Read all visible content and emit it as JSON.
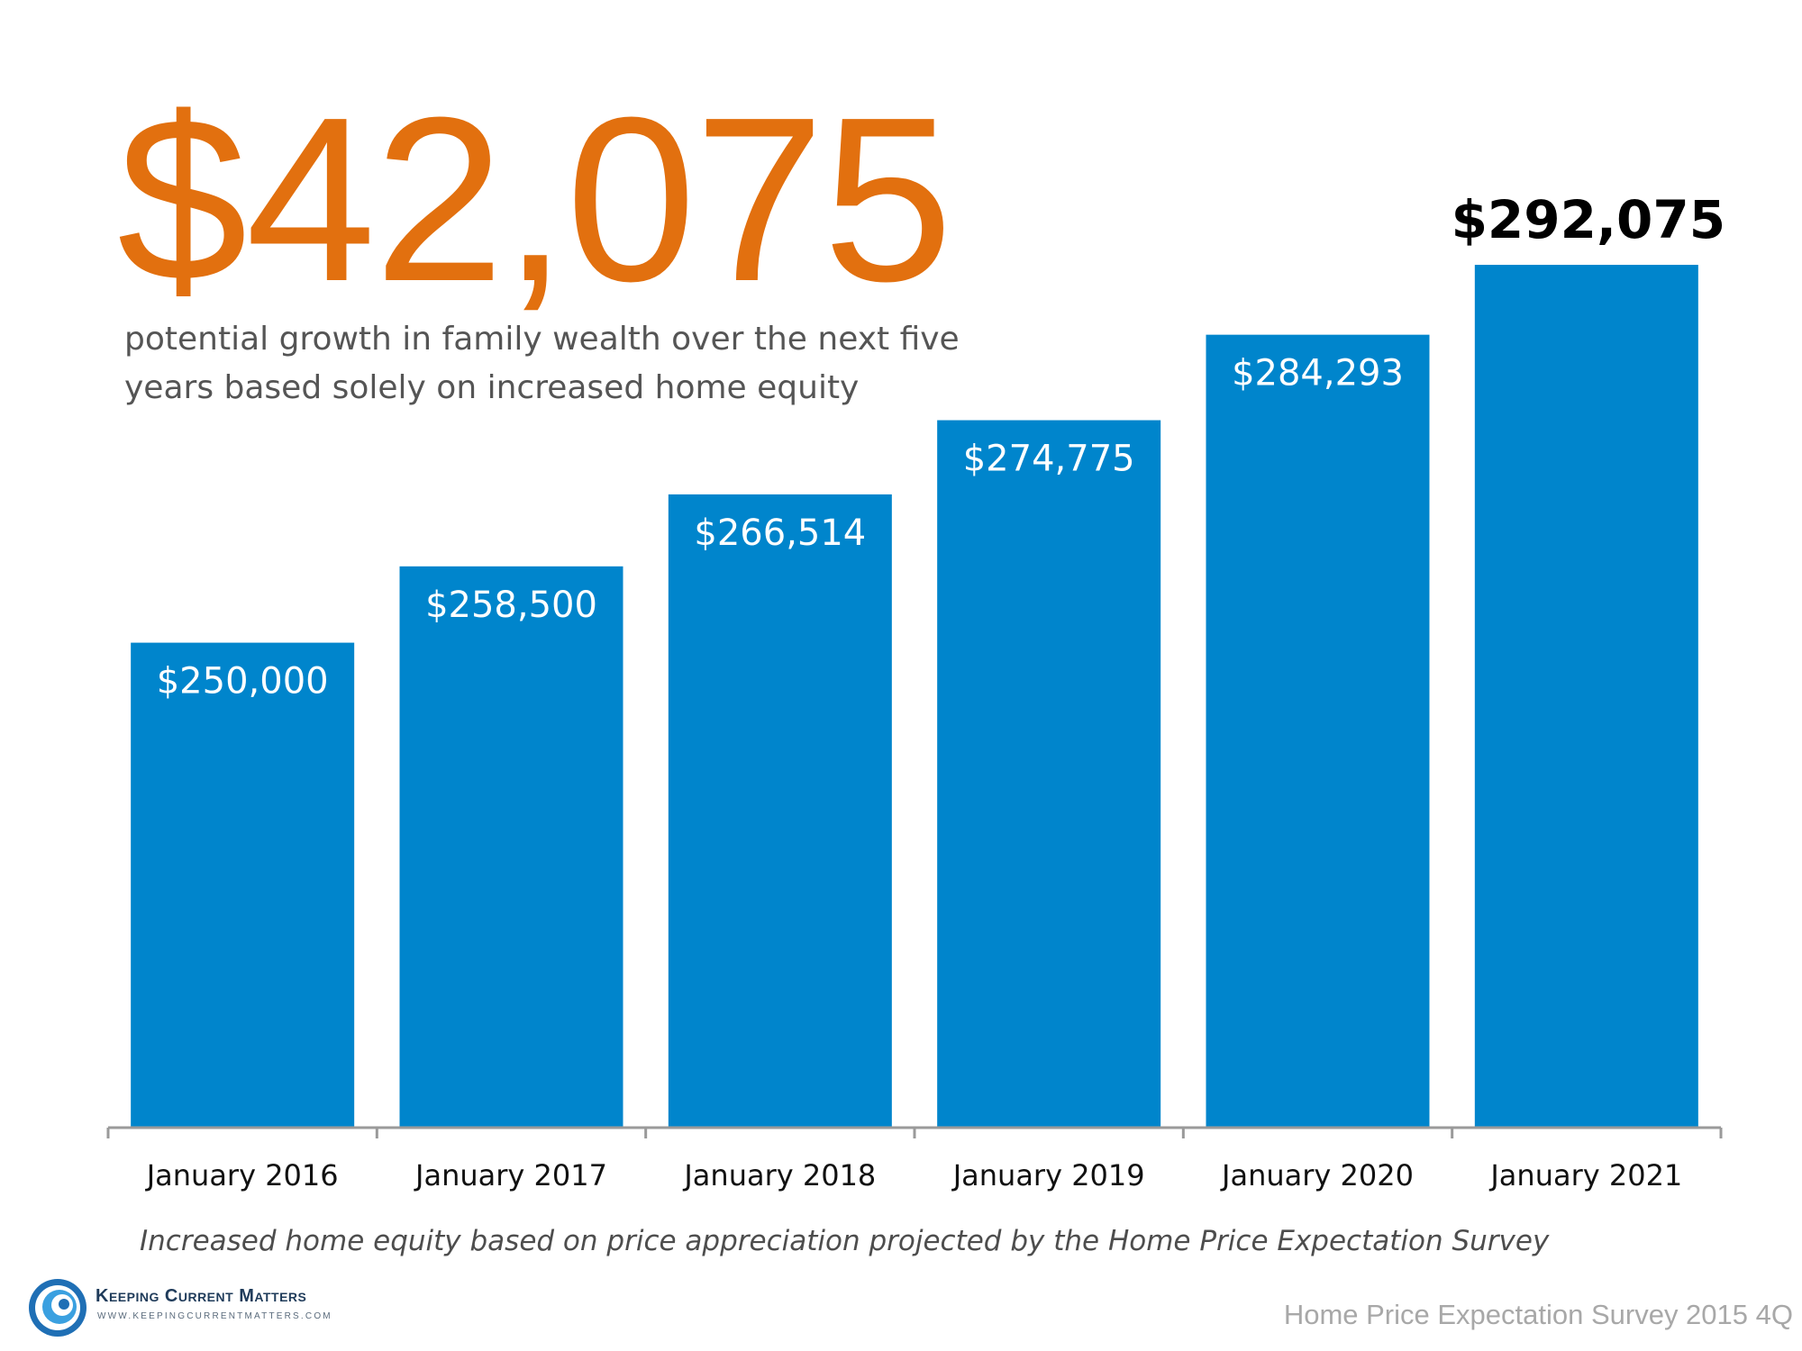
{
  "headline": {
    "value": "$42,075",
    "caption_line1": "potential growth in family wealth over the next five",
    "caption_line2": "years based solely on increased home equity"
  },
  "chart_data": {
    "type": "bar",
    "categories": [
      "January 2016",
      "January 2017",
      "January 2018",
      "January 2019",
      "January 2020",
      "January 2021"
    ],
    "values": [
      250000,
      258500,
      266514,
      274775,
      284293,
      292075
    ],
    "data_labels": [
      "$250,000",
      "$258,500",
      "$266,514",
      "$274,775",
      "$284,293",
      "$292,075"
    ],
    "title": "",
    "xlabel": "",
    "ylabel": "",
    "ylim": [
      196000,
      299000
    ],
    "grid": false,
    "bar_color": "#0085CC",
    "label_color": "#ffffff",
    "highlight_label_color": "#000000"
  },
  "footnote": "Increased home equity based on price appreciation projected by the Home Price Expectation Survey",
  "source": "Home Price Expectation Survey 2015 4Q",
  "logo": {
    "name": "Keeping Current Matters",
    "url": "WWW.KEEPINGCURRENTMATTERS.COM",
    "icon": "swirl-icon",
    "color": "#1f6fb5"
  }
}
